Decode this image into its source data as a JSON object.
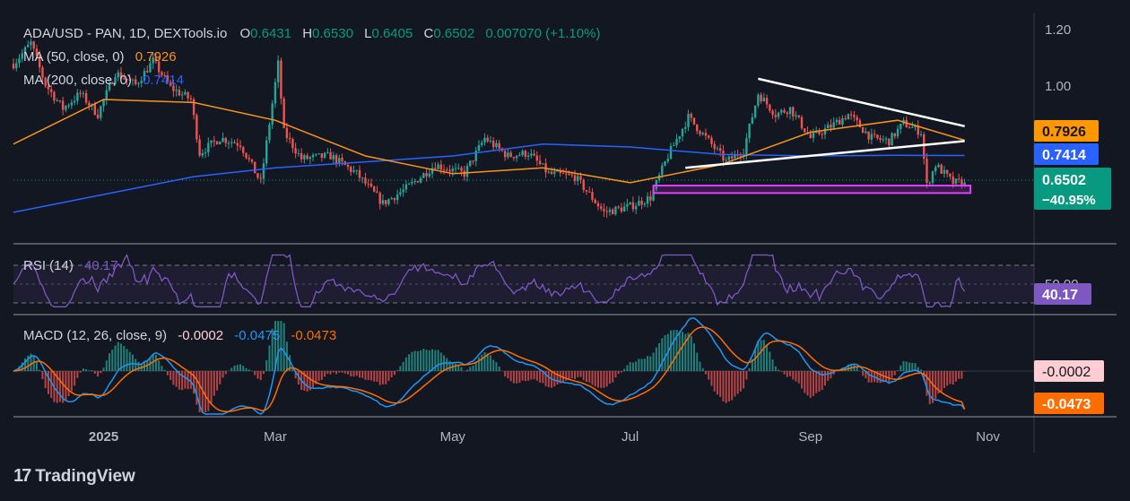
{
  "header": {
    "symbol": "ADA/USD - PAN, 1D, DEXTools.io",
    "o_label": "O",
    "o_value": "0.6431",
    "h_label": "H",
    "h_value": "0.6530",
    "l_label": "L",
    "l_value": "0.6405",
    "c_label": "C",
    "c_value": "0.6502",
    "change": "0.007070 (+1.10%)"
  },
  "ma50": {
    "label": "MA (50, close, 0)",
    "value": "0.7926",
    "color": "#f7931a"
  },
  "ma200": {
    "label": "MA (200, close, 0)",
    "value": "0.7414",
    "color": "#2962ff"
  },
  "price_badge": {
    "price": "0.6502",
    "pct": "−40.95%",
    "color": "#089981"
  },
  "rsi": {
    "label": "RSI (14)",
    "value": "40.17",
    "color": "#7e57c2",
    "upper_tick": "50.00"
  },
  "macd": {
    "label": "MACD (12, 26, close, 9)",
    "hist_value": "-0.0002",
    "macd_value": "-0.0475",
    "signal_value": "-0.0473",
    "hist_color": "#ffcdd2",
    "macd_color": "#2196f3",
    "signal_color": "#ff6d00"
  },
  "brand": {
    "name": "TradingView",
    "logo": "17"
  },
  "chart_data": {
    "type": "candlestick",
    "y_ticks": [
      "1.20",
      "1.00"
    ],
    "ylim": [
      0.45,
      1.22
    ],
    "x_ticks": [
      {
        "label": "2025",
        "date": "2025-01-01"
      },
      {
        "label": "Mar",
        "date": "2025-03-01"
      },
      {
        "label": "May",
        "date": "2025-05-01"
      },
      {
        "label": "Jul",
        "date": "2025-07-01"
      },
      {
        "label": "Sep",
        "date": "2025-09-01"
      },
      {
        "label": "Nov",
        "date": "2025-11-01"
      }
    ],
    "close_path": [
      {
        "date": "2024-12-01",
        "c": 1.05
      },
      {
        "date": "2024-12-07",
        "c": 1.12
      },
      {
        "date": "2024-12-12",
        "c": 0.98
      },
      {
        "date": "2024-12-18",
        "c": 0.9
      },
      {
        "date": "2024-12-24",
        "c": 0.95
      },
      {
        "date": "2024-12-30",
        "c": 0.88
      },
      {
        "date": "2025-01-05",
        "c": 1.02
      },
      {
        "date": "2025-01-12",
        "c": 0.98
      },
      {
        "date": "2025-01-18",
        "c": 1.06
      },
      {
        "date": "2025-01-24",
        "c": 0.97
      },
      {
        "date": "2025-01-31",
        "c": 0.93
      },
      {
        "date": "2025-02-03",
        "c": 0.75
      },
      {
        "date": "2025-02-10",
        "c": 0.8
      },
      {
        "date": "2025-02-17",
        "c": 0.78
      },
      {
        "date": "2025-02-24",
        "c": 0.65
      },
      {
        "date": "2025-03-02",
        "c": 1.05
      },
      {
        "date": "2025-03-04",
        "c": 0.82
      },
      {
        "date": "2025-03-10",
        "c": 0.73
      },
      {
        "date": "2025-03-20",
        "c": 0.74
      },
      {
        "date": "2025-03-29",
        "c": 0.68
      },
      {
        "date": "2025-04-07",
        "c": 0.58
      },
      {
        "date": "2025-04-15",
        "c": 0.63
      },
      {
        "date": "2025-04-25",
        "c": 0.71
      },
      {
        "date": "2025-05-05",
        "c": 0.68
      },
      {
        "date": "2025-05-12",
        "c": 0.8
      },
      {
        "date": "2025-05-20",
        "c": 0.74
      },
      {
        "date": "2025-05-27",
        "c": 0.75
      },
      {
        "date": "2025-06-03",
        "c": 0.68
      },
      {
        "date": "2025-06-12",
        "c": 0.67
      },
      {
        "date": "2025-06-22",
        "c": 0.55
      },
      {
        "date": "2025-07-01",
        "c": 0.57
      },
      {
        "date": "2025-07-08",
        "c": 0.6
      },
      {
        "date": "2025-07-14",
        "c": 0.74
      },
      {
        "date": "2025-07-21",
        "c": 0.87
      },
      {
        "date": "2025-07-28",
        "c": 0.79
      },
      {
        "date": "2025-08-03",
        "c": 0.72
      },
      {
        "date": "2025-08-09",
        "c": 0.76
      },
      {
        "date": "2025-08-14",
        "c": 0.95
      },
      {
        "date": "2025-08-20",
        "c": 0.88
      },
      {
        "date": "2025-08-25",
        "c": 0.9
      },
      {
        "date": "2025-09-01",
        "c": 0.8
      },
      {
        "date": "2025-09-08",
        "c": 0.84
      },
      {
        "date": "2025-09-14",
        "c": 0.88
      },
      {
        "date": "2025-09-22",
        "c": 0.8
      },
      {
        "date": "2025-09-28",
        "c": 0.79
      },
      {
        "date": "2025-10-03",
        "c": 0.85
      },
      {
        "date": "2025-10-09",
        "c": 0.82
      },
      {
        "date": "2025-10-11",
        "c": 0.64
      },
      {
        "date": "2025-10-14",
        "c": 0.71
      },
      {
        "date": "2025-10-20",
        "c": 0.65
      },
      {
        "date": "2025-10-24",
        "c": 0.6502
      }
    ],
    "ma50_path": [
      {
        "date": "2024-12-01",
        "v": 0.78
      },
      {
        "date": "2025-01-01",
        "v": 0.93
      },
      {
        "date": "2025-02-01",
        "v": 0.92
      },
      {
        "date": "2025-03-01",
        "v": 0.86
      },
      {
        "date": "2025-04-01",
        "v": 0.74
      },
      {
        "date": "2025-05-01",
        "v": 0.68
      },
      {
        "date": "2025-06-01",
        "v": 0.7
      },
      {
        "date": "2025-07-01",
        "v": 0.65
      },
      {
        "date": "2025-08-01",
        "v": 0.71
      },
      {
        "date": "2025-09-01",
        "v": 0.82
      },
      {
        "date": "2025-10-01",
        "v": 0.86
      },
      {
        "date": "2025-10-24",
        "v": 0.7926
      }
    ],
    "ma200_path": [
      {
        "date": "2024-12-01",
        "v": 0.55
      },
      {
        "date": "2025-01-01",
        "v": 0.61
      },
      {
        "date": "2025-02-01",
        "v": 0.67
      },
      {
        "date": "2025-03-01",
        "v": 0.7
      },
      {
        "date": "2025-04-01",
        "v": 0.72
      },
      {
        "date": "2025-05-01",
        "v": 0.74
      },
      {
        "date": "2025-06-01",
        "v": 0.78
      },
      {
        "date": "2025-07-01",
        "v": 0.77
      },
      {
        "date": "2025-08-01",
        "v": 0.745
      },
      {
        "date": "2025-09-01",
        "v": 0.74
      },
      {
        "date": "2025-10-01",
        "v": 0.742
      },
      {
        "date": "2025-10-24",
        "v": 0.7414
      }
    ],
    "upper_trendline": [
      {
        "date": "2025-08-14",
        "v": 1.0
      },
      {
        "date": "2025-10-24",
        "v": 0.84
      }
    ],
    "lower_trendline": [
      {
        "date": "2025-07-20",
        "v": 0.7
      },
      {
        "date": "2025-10-24",
        "v": 0.79
      }
    ],
    "support_zone": {
      "start": "2025-07-09",
      "end": "2025-10-26",
      "low": 0.615,
      "high": 0.64
    },
    "rsi": {
      "ylim": [
        20,
        80
      ],
      "levels": [
        70,
        50,
        30
      ],
      "value": 40.17
    },
    "macd": {
      "macd": -0.0475,
      "signal": -0.0473,
      "hist": -0.0002
    }
  }
}
